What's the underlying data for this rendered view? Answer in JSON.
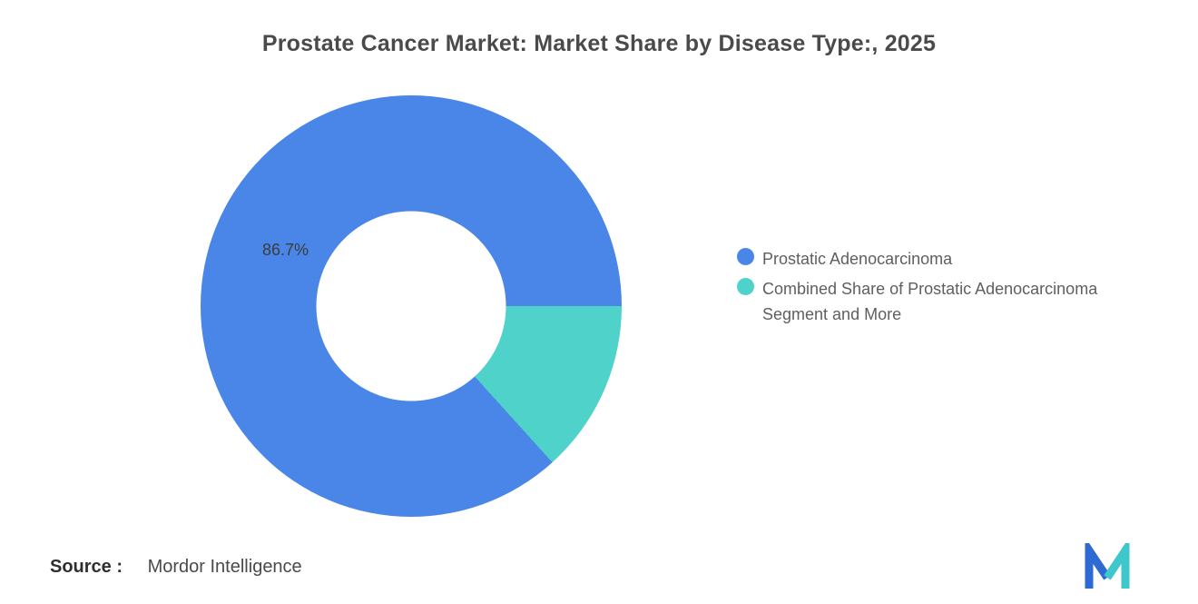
{
  "page": {
    "background": "#ffffff"
  },
  "title": "Prostate Cancer Market: Market Share by Disease Type:, 2025",
  "source": {
    "label": "Source :",
    "value": "Mordor Intelligence"
  },
  "logo": {
    "name": "mordor-intelligence-logo",
    "blue": "#2e6ad1",
    "teal": "#3fc8cb"
  },
  "chart_data": {
    "type": "pie",
    "subtype": "donut",
    "title": "Prostate Cancer Market: Market Share by Disease Type:, 2025",
    "units": "%",
    "slices": [
      {
        "label": "Prostatic Adenocarcinoma",
        "value": 86.7,
        "data_label": "86.7%",
        "color": "#4a86e8"
      },
      {
        "label": "Combined Share of Prostatic Adenocarcinoma Segment and More",
        "value": 13.3,
        "data_label": "",
        "color": "#4ed2c9"
      }
    ],
    "minor_slice_start_deg": 90,
    "inner_radius_ratio": 0.45,
    "legend_position": "right",
    "grid": false
  }
}
